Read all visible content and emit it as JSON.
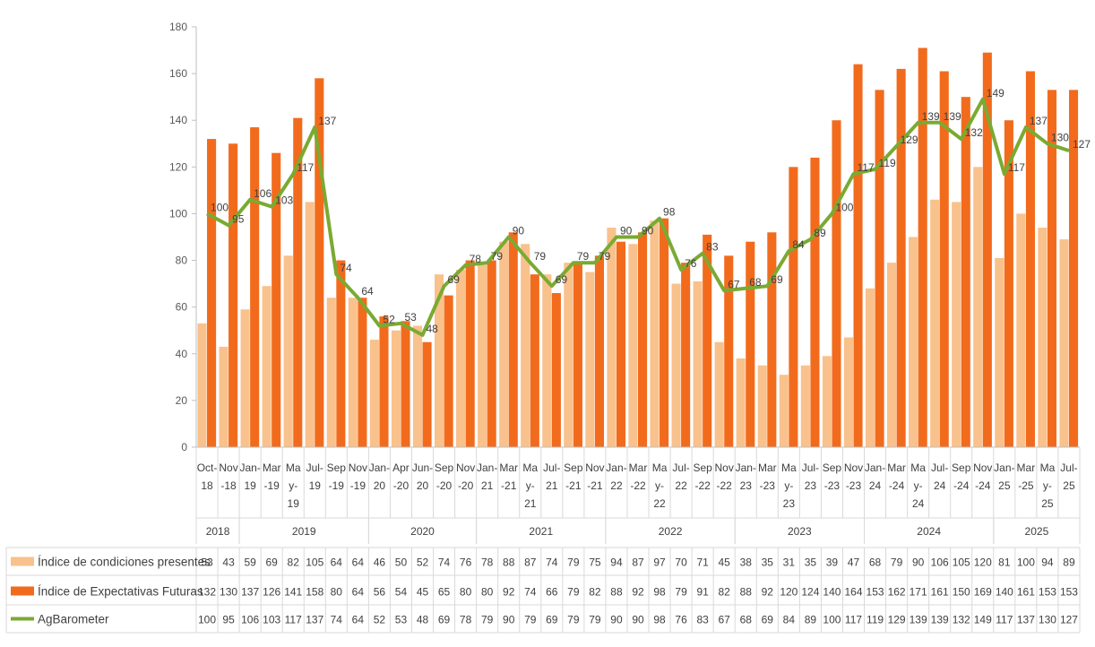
{
  "chart_data": {
    "type": "bar",
    "categories": [
      "Oct-18",
      "Nov-18",
      "Jan-19",
      "Mar-19",
      "May-19",
      "Jul-19",
      "Sep-19",
      "Nov-19",
      "Jan-20",
      "Apr-20",
      "Jun-20",
      "Sep-20",
      "Nov-20",
      "Jan-21",
      "Mar-21",
      "May-21",
      "Jul-21",
      "Sep-21",
      "Nov-21",
      "Jan-22",
      "Mar-22",
      "May-22",
      "Jul-22",
      "Sep-22",
      "Nov-22",
      "Jan-23",
      "Mar-23",
      "May-23",
      "Jul-23",
      "Sep-23",
      "Nov-23",
      "Jan-24",
      "Mar-24",
      "May-24",
      "Jul-24",
      "Sep-24",
      "Nov-24",
      "Jan-25",
      "Mar-25",
      "May-25",
      "Jul-25"
    ],
    "tick_labels": [
      [
        "Oct-",
        "18"
      ],
      [
        "Nov",
        "-18"
      ],
      [
        "Jan-",
        "19"
      ],
      [
        "Mar",
        "-19"
      ],
      [
        "Ma",
        "y-",
        "19"
      ],
      [
        "Jul-",
        "19"
      ],
      [
        "Sep",
        "-19"
      ],
      [
        "Nov",
        "-19"
      ],
      [
        "Jan-",
        "20"
      ],
      [
        "Apr",
        "-20"
      ],
      [
        "Jun-",
        "20"
      ],
      [
        "Sep",
        "-20"
      ],
      [
        "Nov",
        "-20"
      ],
      [
        "Jan-",
        "21"
      ],
      [
        "Mar",
        "-21"
      ],
      [
        "Ma",
        "y-",
        "21"
      ],
      [
        "Jul-",
        "21"
      ],
      [
        "Sep",
        "-21"
      ],
      [
        "Nov",
        "-21"
      ],
      [
        "Jan-",
        "22"
      ],
      [
        "Mar",
        "-22"
      ],
      [
        "Ma",
        "y-",
        "22"
      ],
      [
        "Jul-",
        "22"
      ],
      [
        "Sep",
        "-22"
      ],
      [
        "Nov",
        "-22"
      ],
      [
        "Jan-",
        "23"
      ],
      [
        "Mar",
        "-23"
      ],
      [
        "Ma",
        "y-",
        "23"
      ],
      [
        "Jul-",
        "23"
      ],
      [
        "Sep",
        "-23"
      ],
      [
        "Nov",
        "-23"
      ],
      [
        "Jan-",
        "24"
      ],
      [
        "Mar",
        "-24"
      ],
      [
        "Ma",
        "y-",
        "24"
      ],
      [
        "Jul-",
        "24"
      ],
      [
        "Sep",
        "-24"
      ],
      [
        "Nov",
        "-24"
      ],
      [
        "Jan-",
        "25"
      ],
      [
        "Mar",
        "-25"
      ],
      [
        "Ma",
        "y-",
        "25"
      ],
      [
        "Jul-",
        "25"
      ]
    ],
    "years": [
      {
        "label": "2018",
        "start": 0,
        "end": 1
      },
      {
        "label": "2019",
        "start": 2,
        "end": 7
      },
      {
        "label": "2020",
        "start": 8,
        "end": 12
      },
      {
        "label": "2021",
        "start": 13,
        "end": 18
      },
      {
        "label": "2022",
        "start": 19,
        "end": 24
      },
      {
        "label": "2023",
        "start": 25,
        "end": 30
      },
      {
        "label": "2024",
        "start": 31,
        "end": 36
      },
      {
        "label": "2025",
        "start": 37,
        "end": 40
      }
    ],
    "series": [
      {
        "name": "Índice de condiciones presentes",
        "kind": "bar",
        "color": "#F9C18C",
        "values": [
          53,
          43,
          59,
          69,
          82,
          105,
          64,
          64,
          46,
          50,
          52,
          74,
          76,
          78,
          88,
          87,
          74,
          79,
          75,
          94,
          87,
          97,
          70,
          71,
          45,
          38,
          35,
          31,
          35,
          39,
          47,
          68,
          79,
          90,
          106,
          105,
          120,
          81,
          100,
          94,
          89
        ]
      },
      {
        "name": "Índice de Expectativas Futuras",
        "kind": "bar",
        "color": "#F26B1D",
        "values": [
          132,
          130,
          137,
          126,
          141,
          158,
          80,
          64,
          56,
          54,
          45,
          65,
          80,
          80,
          92,
          74,
          66,
          79,
          82,
          88,
          92,
          98,
          79,
          91,
          82,
          88,
          92,
          120,
          124,
          140,
          164,
          153,
          162,
          171,
          161,
          150,
          169,
          140,
          161,
          153,
          153
        ]
      },
      {
        "name": "AgBarometer",
        "kind": "line",
        "color": "#7AAA32",
        "values": [
          100,
          95,
          106,
          103,
          117,
          137,
          74,
          64,
          52,
          53,
          48,
          69,
          78,
          79,
          90,
          79,
          69,
          79,
          79,
          90,
          90,
          98,
          76,
          83,
          67,
          68,
          69,
          84,
          89,
          100,
          117,
          119,
          129,
          139,
          139,
          132,
          149,
          117,
          137,
          130,
          127
        ]
      }
    ],
    "ylim": [
      0,
      180
    ],
    "yticks": [
      0,
      20,
      40,
      60,
      80,
      100,
      120,
      140,
      160,
      180
    ],
    "grid": false,
    "legend": "data-table below chart"
  }
}
